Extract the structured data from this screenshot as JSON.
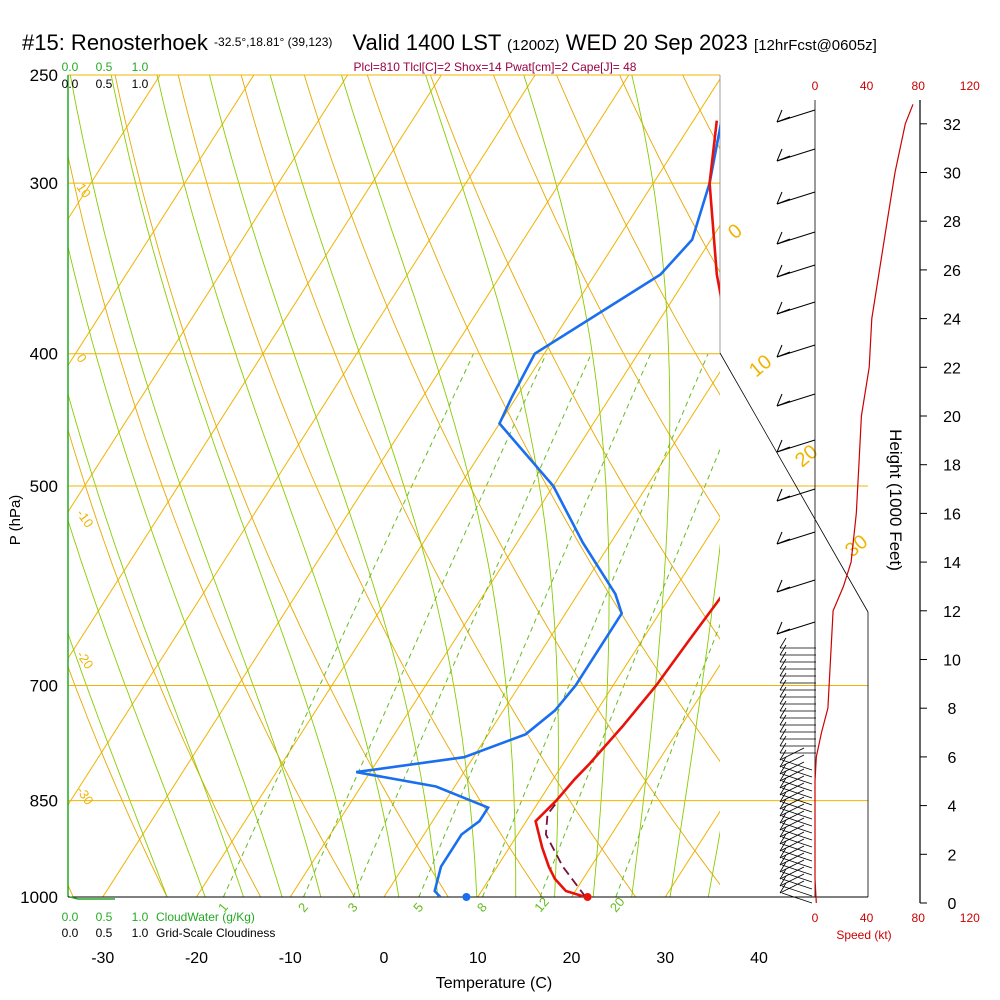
{
  "header": {
    "station": "#15: Renosterhoek",
    "coords": "-32.5°,18.81° (39,123)",
    "valid": "Valid 1400 LST",
    "zulu": "(1200Z)",
    "date": "WED 20 Sep 2023",
    "forecast": "[12hrFcst@0605z]",
    "indices": "Plcl=810 Tlcl[C]=2 Shox=14 Pwat[cm]=2 Cape[J]= 48"
  },
  "colors": {
    "isotherm": "#f0b400",
    "dry_adiabat": "#e8a800",
    "moist_adiabat": "#88cc00",
    "mixing_ratio": "#66bb22",
    "temperature": "#e8120c",
    "dewpoint": "#1a6ef0",
    "parcel": "#7a1040",
    "cloud": "#22aa22",
    "speed": "#cc0000",
    "indices": "#990044"
  },
  "chart_data": {
    "type": "line",
    "xlabel": "Temperature (C)",
    "ylabel": "P (hPa)",
    "right_ylabel": "Height (1000 Feet)",
    "x_ticks": [
      "-30",
      "-20",
      "-10",
      "0",
      "10",
      "20",
      "30",
      "40"
    ],
    "p_ticks": [
      "250",
      "300",
      "400",
      "500",
      "700",
      "850",
      "1000"
    ],
    "height_ticks": [
      "0",
      "2",
      "4",
      "6",
      "8",
      "10",
      "12",
      "14",
      "16",
      "18",
      "20",
      "22",
      "24",
      "26",
      "28",
      "30",
      "32"
    ],
    "speed_ticks": [
      "0",
      "40",
      "80",
      "120"
    ],
    "speed_label": "Speed (kt)",
    "cloud_ticks": [
      "0.0",
      "0.5",
      "1.0"
    ],
    "cloud_scale_label": "CloudWater (g/Kg)",
    "cloudiness_label": "Grid-Scale Cloudiness",
    "cloudiness_ticks": [
      "0.0",
      "0.5",
      "1.0"
    ],
    "isotherm_labels": [
      {
        "text": "10",
        "anchor": "300"
      },
      {
        "text": "0",
        "anchor": "400"
      },
      {
        "text": "-10",
        "anchor": "520"
      },
      {
        "text": "-20",
        "anchor": "660"
      },
      {
        "text": "-30",
        "anchor": "830"
      }
    ],
    "theta_labels": [
      {
        "text": "0",
        "anchor": "340"
      },
      {
        "text": "10",
        "anchor": "420"
      },
      {
        "text": "20",
        "anchor": "510"
      },
      {
        "text": "30",
        "anchor": "590"
      }
    ],
    "mixing_labels": [
      "1",
      "2",
      "3",
      "5",
      "8",
      "12",
      "20"
    ],
    "series": [
      {
        "name": "temperature",
        "points": [
          [
            1000,
            21.5
          ],
          [
            990,
            19
          ],
          [
            970,
            17
          ],
          [
            950,
            15.5
          ],
          [
            920,
            13.5
          ],
          [
            880,
            11
          ],
          [
            850,
            11.8
          ],
          [
            820,
            12.3
          ],
          [
            800,
            12.8
          ],
          [
            750,
            13.8
          ],
          [
            700,
            14.6
          ],
          [
            650,
            15
          ],
          [
            600,
            15.5
          ],
          [
            570,
            15
          ],
          [
            550,
            14.3
          ],
          [
            500,
            10.5
          ],
          [
            450,
            5
          ],
          [
            400,
            0
          ],
          [
            350,
            -7
          ],
          [
            300,
            -14
          ],
          [
            270,
            -17.5
          ]
        ]
      },
      {
        "name": "dewpoint",
        "points": [
          [
            1000,
            6
          ],
          [
            990,
            5
          ],
          [
            950,
            4
          ],
          [
            900,
            4
          ],
          [
            880,
            5
          ],
          [
            860,
            5
          ],
          [
            830,
            -2
          ],
          [
            810,
            -11.5
          ],
          [
            790,
            -1
          ],
          [
            760,
            4
          ],
          [
            730,
            5.5
          ],
          [
            700,
            6
          ],
          [
            650,
            6
          ],
          [
            620,
            6
          ],
          [
            600,
            4
          ],
          [
            550,
            -3
          ],
          [
            500,
            -10
          ],
          [
            450,
            -20
          ],
          [
            430,
            -20.5
          ],
          [
            400,
            -21
          ],
          [
            350,
            -13
          ],
          [
            330,
            -12
          ],
          [
            300,
            -14
          ],
          [
            270,
            -17
          ]
        ]
      },
      {
        "name": "parcel",
        "points": [
          [
            1000,
            21.5
          ],
          [
            950,
            17
          ],
          [
            900,
            13
          ],
          [
            870,
            11.8
          ],
          [
            850,
            12
          ]
        ]
      }
    ],
    "surface_dewpoint_marker": [
      1000,
      9
    ],
    "surface_temperature_marker": [
      1000,
      21.5
    ],
    "speed_profile": [
      [
        0,
        1
      ],
      [
        1,
        0
      ],
      [
        2,
        0
      ],
      [
        3,
        0
      ],
      [
        4,
        0
      ],
      [
        5,
        0
      ],
      [
        6,
        1
      ],
      [
        7,
        5
      ],
      [
        8,
        10
      ],
      [
        10,
        12
      ],
      [
        12,
        14
      ],
      [
        13,
        22
      ],
      [
        14,
        28
      ],
      [
        16,
        32
      ],
      [
        18,
        34
      ],
      [
        20,
        36
      ],
      [
        22,
        42
      ],
      [
        24,
        44
      ],
      [
        26,
        50
      ],
      [
        28,
        56
      ],
      [
        30,
        62
      ],
      [
        32,
        70
      ],
      [
        32.8,
        76
      ]
    ]
  }
}
